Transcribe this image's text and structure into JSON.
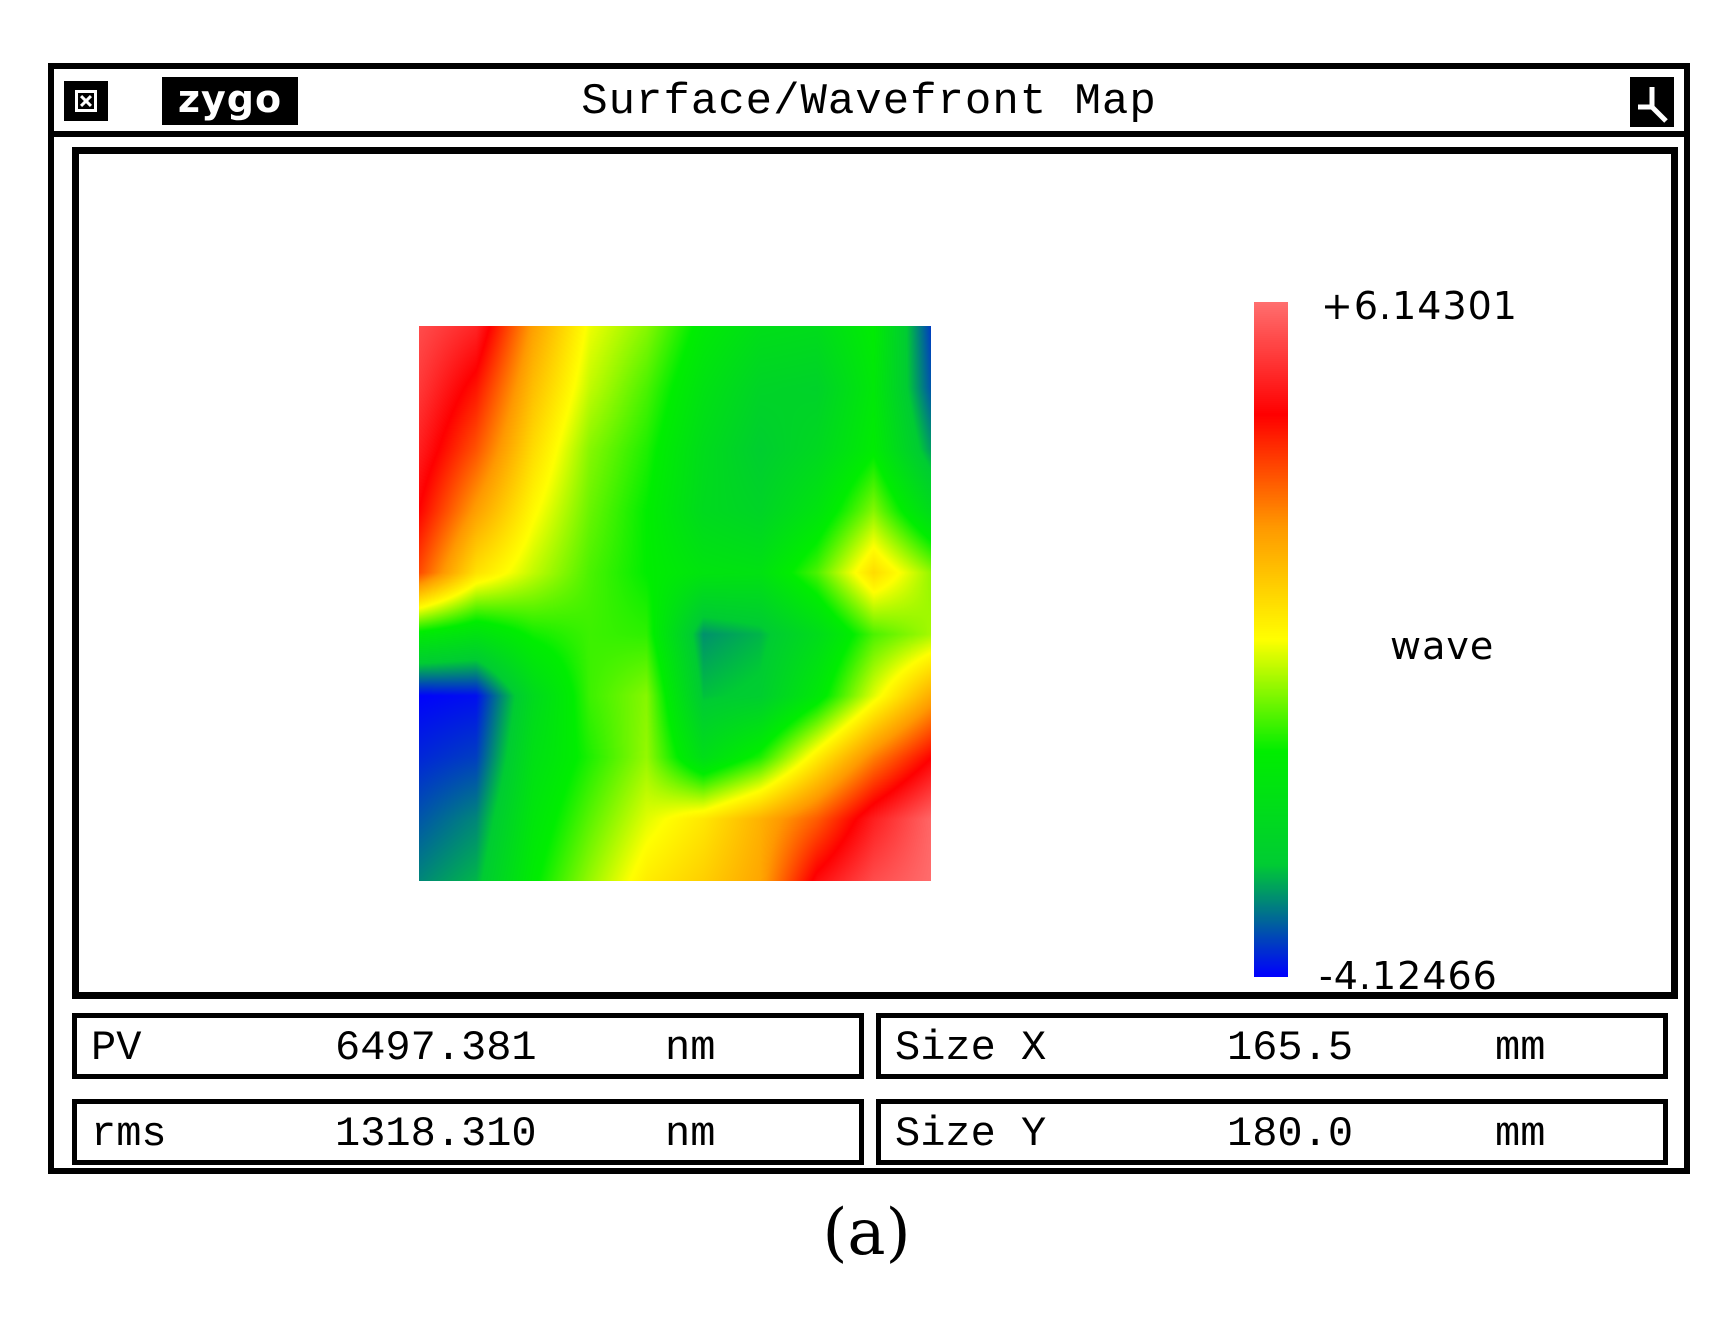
{
  "window": {
    "title": "Surface/Wavefront Map",
    "logo": "zygo",
    "close_icon": "close-box-icon",
    "resize_icon": "resize-corner-icon"
  },
  "colorbar": {
    "max_label": "+6.14301",
    "min_label": "-4.12466",
    "unit": "wave",
    "colors": [
      "#0000ff",
      "#00cc33",
      "#00ee00",
      "#ffff00",
      "#ff9900",
      "#ff0000",
      "#ff6f6f"
    ]
  },
  "stats": {
    "pv": {
      "label": "PV",
      "value": "6497.381",
      "unit": "nm"
    },
    "rms": {
      "label": "rms",
      "value": "1318.310",
      "unit": "nm"
    },
    "size_x": {
      "label": "Size X",
      "value": "165.5",
      "unit": "mm"
    },
    "size_y": {
      "label": "Size Y",
      "value": "180.0",
      "unit": "mm"
    }
  },
  "caption": "(a)",
  "chart_data": {
    "type": "heatmap",
    "title": "",
    "xlabel": "",
    "ylabel": "",
    "value_range": [
      -4.12466,
      6.14301
    ],
    "unit": "wave",
    "grid": [
      [
        5.6,
        5.0,
        2.6,
        0.9,
        0.2,
        -0.9,
        -1.5,
        -1.6,
        -0.8,
        -3.6
      ],
      [
        5.3,
        4.2,
        2.1,
        0.6,
        -0.2,
        -1.3,
        -2.0,
        -2.1,
        -1.0,
        -3.4
      ],
      [
        4.9,
        3.5,
        1.6,
        0.2,
        -0.5,
        -1.6,
        -2.3,
        -1.8,
        -0.8,
        -2.8
      ],
      [
        4.4,
        2.6,
        1.1,
        0.0,
        -0.7,
        -1.7,
        -2.0,
        -1.2,
        0.2,
        -1.6
      ],
      [
        3.6,
        1.5,
        0.6,
        -0.2,
        -0.7,
        -1.2,
        -1.3,
        -0.2,
        1.6,
        0.3
      ],
      [
        -0.9,
        -1.3,
        -0.6,
        -0.3,
        -0.4,
        -2.9,
        -2.6,
        -1.6,
        -0.2,
        0.4
      ],
      [
        -4.1,
        -4.0,
        -1.7,
        -0.3,
        0.2,
        -2.5,
        -2.3,
        -1.0,
        0.8,
        2.4
      ],
      [
        -3.8,
        -3.6,
        -1.4,
        -0.5,
        0.3,
        -1.5,
        -0.5,
        1.3,
        3.0,
        4.4
      ],
      [
        -3.4,
        -3.0,
        -1.1,
        -0.1,
        0.8,
        1.4,
        2.3,
        3.4,
        4.9,
        6.0
      ],
      [
        -3.0,
        -2.6,
        -0.8,
        0.3,
        1.3,
        1.8,
        2.5,
        4.6,
        5.6,
        6.1
      ]
    ]
  }
}
